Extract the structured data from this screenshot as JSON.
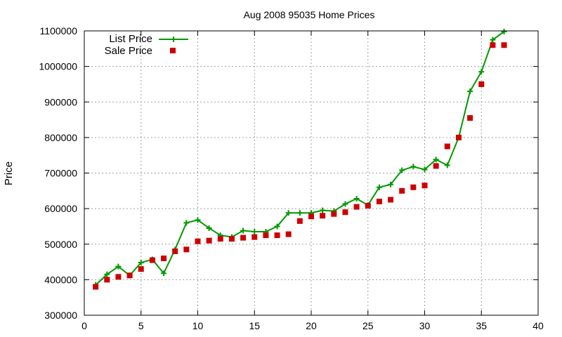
{
  "chart_data": {
    "type": "line",
    "title": "Aug 2008 95035 Home Prices",
    "xlabel": "",
    "ylabel": "Price",
    "xlim": [
      0,
      40
    ],
    "ylim": [
      300000,
      1100000
    ],
    "xticks": [
      0,
      5,
      10,
      15,
      20,
      25,
      30,
      35,
      40
    ],
    "yticks": [
      300000,
      400000,
      500000,
      600000,
      700000,
      800000,
      900000,
      1000000,
      1100000
    ],
    "grid": true,
    "legend_position": "top-left",
    "series": [
      {
        "name": "List Price",
        "style": "line+plus-markers",
        "color": "#009900",
        "x": [
          1,
          2,
          3,
          4,
          5,
          6,
          7,
          8,
          9,
          10,
          11,
          12,
          13,
          14,
          15,
          16,
          17,
          18,
          19,
          20,
          21,
          22,
          23,
          24,
          25,
          26,
          27,
          28,
          29,
          30,
          31,
          32,
          33,
          34,
          35,
          36,
          37
        ],
        "y": [
          385000,
          415000,
          437000,
          412000,
          448000,
          457000,
          418000,
          485000,
          560000,
          568000,
          545000,
          525000,
          520000,
          538000,
          535000,
          535000,
          550000,
          588000,
          588000,
          588000,
          595000,
          593000,
          613000,
          628000,
          610000,
          660000,
          668000,
          708000,
          718000,
          710000,
          738000,
          722000,
          800000,
          930000,
          985000,
          1075000,
          1098000
        ]
      },
      {
        "name": "Sale Price",
        "style": "square-markers",
        "color": "#cc0000",
        "x": [
          1,
          2,
          3,
          4,
          5,
          6,
          7,
          8,
          9,
          10,
          11,
          12,
          13,
          14,
          15,
          16,
          17,
          18,
          19,
          20,
          21,
          22,
          23,
          24,
          25,
          26,
          27,
          28,
          29,
          30,
          31,
          32,
          33,
          34,
          35,
          36,
          37
        ],
        "y": [
          380000,
          400000,
          408000,
          412000,
          430000,
          455000,
          460000,
          480000,
          485000,
          508000,
          510000,
          515000,
          515000,
          518000,
          520000,
          525000,
          525000,
          528000,
          565000,
          578000,
          580000,
          585000,
          590000,
          605000,
          608000,
          620000,
          625000,
          650000,
          660000,
          665000,
          720000,
          775000,
          800000,
          855000,
          950000,
          1060000,
          1060000
        ]
      }
    ]
  }
}
